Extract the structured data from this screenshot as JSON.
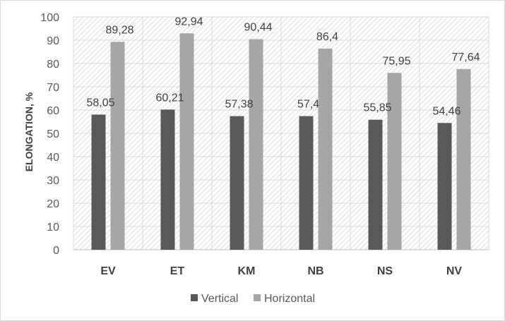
{
  "chart_data": {
    "type": "bar",
    "title": "",
    "xlabel": "",
    "ylabel": "ELONGATION, %",
    "ylim": [
      0,
      100
    ],
    "yticks": [
      0,
      10,
      20,
      30,
      40,
      50,
      60,
      70,
      80,
      90,
      100
    ],
    "categories": [
      "EV",
      "ET",
      "KM",
      "NB",
      "NS",
      "NV"
    ],
    "series": [
      {
        "name": "Vertical",
        "values": [
          58.05,
          60.21,
          57.38,
          57.4,
          55.85,
          54.46
        ],
        "labels": [
          "58,05",
          "60,21",
          "57,38",
          "57,4",
          "55,85",
          "54,46"
        ],
        "color": "#595959"
      },
      {
        "name": "Horizontal",
        "values": [
          89.28,
          92.94,
          90.44,
          86.4,
          75.95,
          77.64
        ],
        "labels": [
          "89,28",
          "92,94",
          "90,44",
          "86,4",
          "75,95",
          "77,64"
        ],
        "color": "#a6a6a6"
      }
    ],
    "grid": true,
    "plot_background": "hatched",
    "legend_position": "bottom"
  }
}
